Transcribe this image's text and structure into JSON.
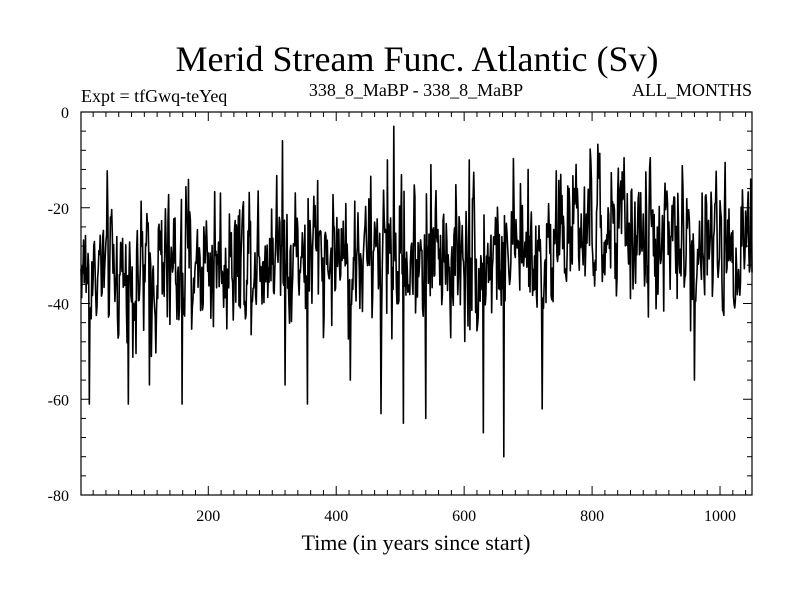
{
  "chart_data": {
    "type": "line",
    "title": "Merid Stream Func. Atlantic (Sv)",
    "subtitle_left": "Expt = tfGwq-teYeq",
    "subtitle_center": "338_8_MaBP - 338_8_MaBP",
    "subtitle_right": "ALL_MONTHS",
    "xlabel": "Time (in years since start)",
    "ylabel": "",
    "xlim": [
      1,
      1050
    ],
    "ylim": [
      -80,
      0
    ],
    "xticks_labeled": [
      200,
      400,
      600,
      800,
      1000
    ],
    "xtick_labels": [
      "200",
      "400",
      "600",
      "800",
      "1000"
    ],
    "yticks_labeled": [
      0,
      -20,
      -40,
      -60,
      -80
    ],
    "ytick_labels": [
      "0",
      "-20",
      "-40",
      "-60",
      "-80"
    ],
    "series": [
      {
        "name": "Merid Stream Func. Atlantic",
        "color": "#000000",
        "generation": "approximate reproduction of a noisy annual time series; noise is synthesized with seed below",
        "seed": 1234,
        "n_points": 1050,
        "noise_amplitude": 7,
        "baseline": [
          [
            1,
            -33
          ],
          [
            100,
            -34
          ],
          [
            200,
            -31
          ],
          [
            300,
            -28
          ],
          [
            400,
            -30
          ],
          [
            500,
            -30
          ],
          [
            600,
            -30
          ],
          [
            700,
            -30
          ],
          [
            760,
            -25
          ],
          [
            850,
            -25
          ],
          [
            900,
            -27
          ],
          [
            1000,
            -28
          ],
          [
            1050,
            -25
          ]
        ],
        "spikes": [
          [
            14,
            -61
          ],
          [
            75,
            -61
          ],
          [
            108,
            -57
          ],
          [
            159,
            -61
          ],
          [
            320,
            -57
          ],
          [
            355,
            -61
          ],
          [
            422,
            -56
          ],
          [
            470,
            -63
          ],
          [
            505,
            -65
          ],
          [
            540,
            -64
          ],
          [
            630,
            -67
          ],
          [
            662,
            -72
          ],
          [
            722,
            -62
          ],
          [
            960,
            -56
          ],
          [
            316,
            -6
          ],
          [
            480,
            -10
          ],
          [
            490,
            -3
          ],
          [
            548,
            -11
          ],
          [
            608,
            -10
          ],
          [
            700,
            -12
          ],
          [
            1048,
            -14
          ]
        ]
      }
    ]
  }
}
